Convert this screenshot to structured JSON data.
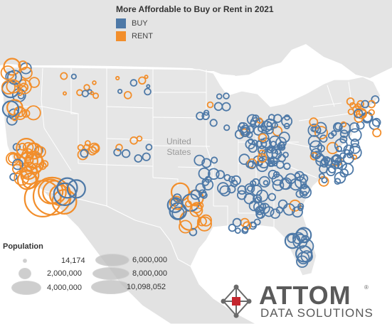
{
  "legend": {
    "title": "More Affordable to Buy or Rent in 2021",
    "items": [
      {
        "label": "BUY",
        "color": "#4e79a7"
      },
      {
        "label": "RENT",
        "color": "#f28e2b"
      }
    ]
  },
  "country_label": {
    "line1": "United",
    "line2": "States"
  },
  "population_legend": {
    "title": "Population",
    "entries": [
      "14,174",
      "2,000,000",
      "4,000,000",
      "6,000,000",
      "8,000,000",
      "10,098,052"
    ]
  },
  "logo": {
    "brand": "ATTOM",
    "subtitle": "DATA SOLUTIONS",
    "reg_mark": "®"
  },
  "colors": {
    "buy": "#4e79a7",
    "rent": "#f28e2b",
    "land": "#e9e9e9",
    "water": "#ffffff",
    "border": "#ffffff"
  }
}
